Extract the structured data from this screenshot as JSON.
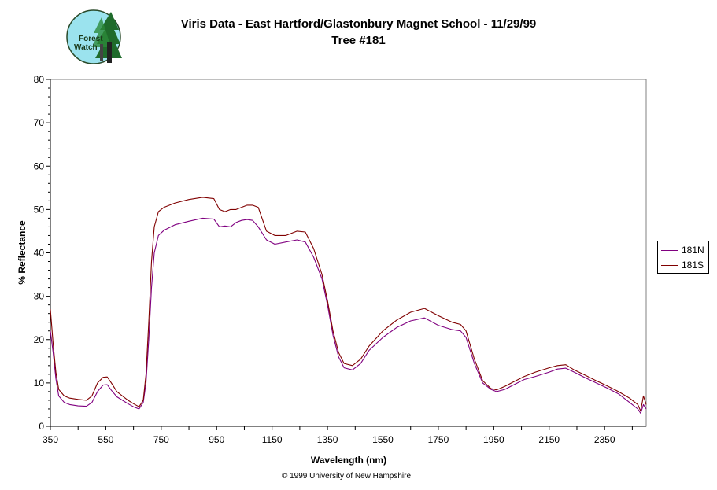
{
  "logo": {
    "line1": "Forest",
    "line2": "Watch"
  },
  "copyright": "© 1999 University of New Hampshire",
  "colors": {
    "series_181N": "#800080",
    "series_181S": "#800000",
    "logo_bg": "#9be3ee",
    "tree": "#1f6b2b"
  },
  "chart_data": {
    "type": "line",
    "title": "Viris Data - East Hartford/Glastonbury Magnet School - 11/29/99",
    "subtitle": "Tree #181",
    "xlabel": "Wavelength (nm)",
    "ylabel": "% Reflectance",
    "xlim": [
      350,
      2500
    ],
    "ylim": [
      0,
      80
    ],
    "xticks": [
      350,
      550,
      750,
      950,
      1150,
      1350,
      1550,
      1750,
      1950,
      2150,
      2350
    ],
    "yticks": [
      0,
      10,
      20,
      30,
      40,
      50,
      60,
      70,
      80
    ],
    "grid": false,
    "legend_position": "right",
    "series": [
      {
        "name": "181N",
        "color": "#800080",
        "x": [
          350,
          360,
          370,
          380,
          400,
          420,
          450,
          480,
          500,
          520,
          540,
          555,
          570,
          590,
          610,
          630,
          650,
          670,
          685,
          695,
          705,
          715,
          725,
          740,
          760,
          800,
          850,
          900,
          940,
          960,
          980,
          1000,
          1020,
          1040,
          1060,
          1080,
          1100,
          1130,
          1160,
          1200,
          1240,
          1270,
          1300,
          1330,
          1350,
          1370,
          1390,
          1410,
          1440,
          1470,
          1500,
          1550,
          1600,
          1650,
          1700,
          1750,
          1800,
          1830,
          1850,
          1880,
          1910,
          1940,
          1960,
          1990,
          2020,
          2060,
          2100,
          2150,
          2180,
          2210,
          2240,
          2280,
          2320,
          2360,
          2400,
          2440,
          2470,
          2480,
          2490,
          2500
        ],
        "y": [
          22,
          17,
          11,
          7,
          5.5,
          5,
          4.7,
          4.6,
          5.5,
          8,
          9.5,
          9.6,
          8.3,
          6.8,
          6,
          5.2,
          4.5,
          4,
          5.5,
          10,
          20,
          32,
          40,
          44,
          45.2,
          46.5,
          47.3,
          48,
          47.8,
          46,
          46.2,
          46,
          47,
          47.5,
          47.7,
          47.5,
          46,
          43,
          42,
          42.5,
          43,
          42.5,
          39,
          34,
          28,
          21,
          16,
          13.5,
          13,
          14.5,
          17.5,
          20.5,
          22.8,
          24.3,
          25,
          23.3,
          22.3,
          22,
          20.5,
          14.5,
          10,
          8.5,
          8,
          8.5,
          9.5,
          10.8,
          11.5,
          12.5,
          13.2,
          13.4,
          12.5,
          11.2,
          10,
          8.8,
          7.5,
          5.5,
          4,
          3,
          5,
          4
        ]
      },
      {
        "name": "181S",
        "color": "#800000",
        "x": [
          350,
          360,
          370,
          380,
          400,
          420,
          450,
          480,
          500,
          520,
          540,
          555,
          570,
          590,
          610,
          630,
          650,
          670,
          685,
          695,
          705,
          715,
          725,
          740,
          760,
          800,
          850,
          900,
          940,
          960,
          980,
          1000,
          1020,
          1040,
          1060,
          1080,
          1100,
          1130,
          1160,
          1200,
          1240,
          1270,
          1300,
          1330,
          1350,
          1370,
          1390,
          1410,
          1440,
          1470,
          1500,
          1550,
          1600,
          1650,
          1700,
          1750,
          1800,
          1830,
          1850,
          1880,
          1910,
          1940,
          1960,
          1990,
          2020,
          2060,
          2100,
          2150,
          2180,
          2210,
          2240,
          2280,
          2320,
          2360,
          2400,
          2440,
          2470,
          2480,
          2490,
          2500
        ],
        "y": [
          27,
          19,
          12.5,
          8.5,
          7,
          6.5,
          6.2,
          6,
          7,
          10,
          11.3,
          11.4,
          10,
          8,
          7,
          6,
          5.2,
          4.5,
          6,
          12,
          24,
          38,
          46,
          49.5,
          50.5,
          51.5,
          52.3,
          52.8,
          52.5,
          50,
          49.5,
          50,
          50,
          50.5,
          51,
          51,
          50.5,
          45,
          44,
          44,
          45,
          44.8,
          41,
          35,
          29,
          22,
          17,
          14.5,
          14,
          15.5,
          18.5,
          22,
          24.5,
          26.3,
          27.2,
          25.5,
          24,
          23.5,
          22,
          15.5,
          10.5,
          8.7,
          8.4,
          9.2,
          10.2,
          11.5,
          12.5,
          13.5,
          14,
          14.2,
          13,
          11.8,
          10.5,
          9.3,
          8,
          6.5,
          5,
          3.5,
          7,
          5
        ]
      }
    ]
  }
}
